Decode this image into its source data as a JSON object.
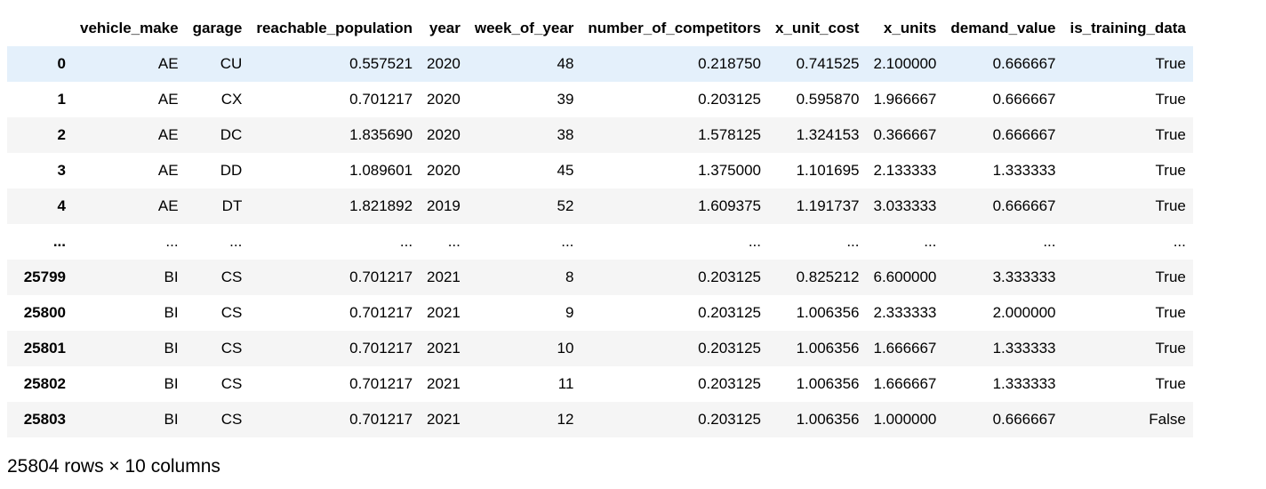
{
  "table": {
    "columns": [
      "",
      "vehicle_make",
      "garage",
      "reachable_population",
      "year",
      "week_of_year",
      "number_of_competitors",
      "x_unit_cost",
      "x_units",
      "demand_value",
      "is_training_data"
    ],
    "rows": [
      [
        "0",
        "AE",
        "CU",
        "0.557521",
        "2020",
        "48",
        "0.218750",
        "0.741525",
        "2.100000",
        "0.666667",
        "True"
      ],
      [
        "1",
        "AE",
        "CX",
        "0.701217",
        "2020",
        "39",
        "0.203125",
        "0.595870",
        "1.966667",
        "0.666667",
        "True"
      ],
      [
        "2",
        "AE",
        "DC",
        "1.835690",
        "2020",
        "38",
        "1.578125",
        "1.324153",
        "0.366667",
        "0.666667",
        "True"
      ],
      [
        "3",
        "AE",
        "DD",
        "1.089601",
        "2020",
        "45",
        "1.375000",
        "1.101695",
        "2.133333",
        "1.333333",
        "True"
      ],
      [
        "4",
        "AE",
        "DT",
        "1.821892",
        "2019",
        "52",
        "1.609375",
        "1.191737",
        "3.033333",
        "0.666667",
        "True"
      ],
      [
        "...",
        "...",
        "...",
        "...",
        "...",
        "...",
        "...",
        "...",
        "...",
        "...",
        "..."
      ],
      [
        "25799",
        "BI",
        "CS",
        "0.701217",
        "2021",
        "8",
        "0.203125",
        "0.825212",
        "6.600000",
        "3.333333",
        "True"
      ],
      [
        "25800",
        "BI",
        "CS",
        "0.701217",
        "2021",
        "9",
        "0.203125",
        "1.006356",
        "2.333333",
        "2.000000",
        "True"
      ],
      [
        "25801",
        "BI",
        "CS",
        "0.701217",
        "2021",
        "10",
        "0.203125",
        "1.006356",
        "1.666667",
        "1.333333",
        "True"
      ],
      [
        "25802",
        "BI",
        "CS",
        "0.701217",
        "2021",
        "11",
        "0.203125",
        "1.006356",
        "1.666667",
        "1.333333",
        "True"
      ],
      [
        "25803",
        "BI",
        "CS",
        "0.701217",
        "2021",
        "12",
        "0.203125",
        "1.006356",
        "1.000000",
        "0.666667",
        "False"
      ]
    ]
  },
  "footer": "25804 rows × 10 columns",
  "colors": {
    "stripe": "#f5f5f5",
    "selected_row": "#e4f0fb"
  }
}
